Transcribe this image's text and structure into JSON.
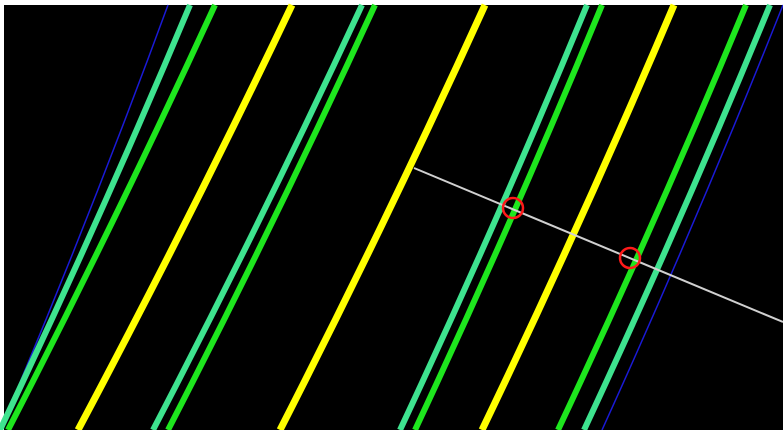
{
  "scene": {
    "background": "#000000",
    "frame_color": "#ffffff",
    "colors": {
      "boundary": "#1a1ad6",
      "outer_line": "#3ee38f",
      "inner_line": "#1ee61e",
      "center_line": "#ffff00",
      "measure_line": "#d0d0d0",
      "marker": "#ff1a1a"
    },
    "line_styles": [
      "boundary",
      "outer_line",
      "inner_line",
      "center_line",
      "outer_line",
      "inner_line",
      "center_line",
      "outer_line",
      "inner_line",
      "center_line",
      "inner_line",
      "outer_line",
      "boundary"
    ],
    "markers": 2
  }
}
